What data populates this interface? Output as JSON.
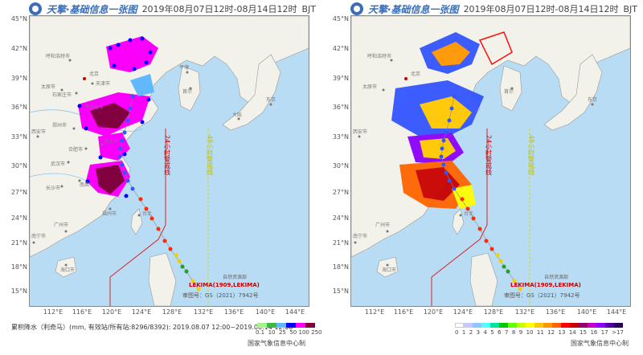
{
  "header": {
    "brand": "天擎·基础信息一张图",
    "time_left": "2019年08月07日12时-08月14日12时",
    "tz_left": "BJT",
    "time_right": "2019年08月07日12时-08月14日12时",
    "tz_right": "BJT",
    "logo_icon": "weather-logo-icon"
  },
  "axes": {
    "lat_labels": [
      "45°N",
      "42°N",
      "39°N",
      "36°N",
      "33°N",
      "30°N",
      "27°N",
      "24°N",
      "21°N",
      "18°N",
      "15°N"
    ],
    "lon_labels": [
      "112°E",
      "116°E",
      "120°E",
      "124°E",
      "128°E",
      "132°E",
      "136°E",
      "140°E",
      "144°E"
    ]
  },
  "map_labels": {
    "cities": [
      "呼和浩特市",
      "北京",
      "天津市",
      "太原市",
      "石家庄市",
      "济南市",
      "郑州市",
      "西安市",
      "合肥市",
      "南京市",
      "武汉市",
      "长沙市",
      "南昌市",
      "福州市",
      "台北",
      "广州市",
      "南宁市",
      "海口市",
      "首尔",
      "平壤",
      "东京",
      "大阪"
    ],
    "warning_24h": "24小时警戒线",
    "warning_48h": "48小时警戒线",
    "typhoon": "LEKIMA(1909,LEKIMA)",
    "chart_no": "审图号：GS（2021）7942号",
    "pub_note": "自然资源部"
  },
  "legend_left": {
    "title": "累积降水（利奇马）(mm, 有效站/所有站:8296/8392): 2019.08.07 12:00~2019.08.14 12:00",
    "ticks": [
      "0.1",
      "10",
      "25",
      "50",
      "100",
      "250"
    ],
    "colors": [
      "#a6f28f",
      "#3dba3d",
      "#61b8ff",
      "#0000ff",
      "#fa00fa",
      "#800040"
    ]
  },
  "legend_right": {
    "ticks": [
      "0",
      "1",
      "2",
      "3",
      "4",
      "5",
      "6",
      "7",
      "8",
      "9",
      "10",
      "11",
      "12",
      "13",
      "14",
      "15",
      "16",
      "17",
      ">17"
    ],
    "colors": [
      "#ffffff",
      "#c8c8ff",
      "#8cc8ff",
      "#50ffff",
      "#00e6a0",
      "#00c800",
      "#64ff00",
      "#c8ff00",
      "#ffff00",
      "#ffc800",
      "#ff9600",
      "#ff6400",
      "#ff0000",
      "#c80000",
      "#960064",
      "#c800c8",
      "#8c00ff",
      "#5000a0",
      "#280064"
    ]
  },
  "credit": {
    "left": "国家气象信息中心制",
    "right": "国家气象信息中心制"
  }
}
